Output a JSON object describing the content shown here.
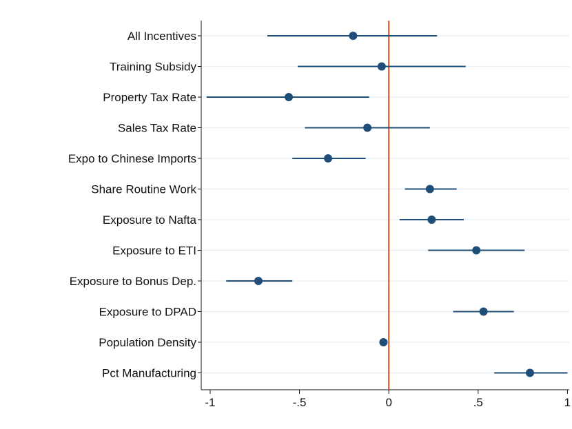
{
  "chart_data": {
    "type": "scatter",
    "orientation": "horizontal-coefficient-plot",
    "title": "",
    "xlabel": "",
    "ylabel": "",
    "xlim": [
      -1.05,
      1.01
    ],
    "xticks": [
      -1,
      -0.5,
      0,
      0.5,
      1
    ],
    "xtick_labels": [
      "-1",
      "-.5",
      "0",
      ".5",
      "1"
    ],
    "reference_line": {
      "x": 0,
      "color": "#e0531f"
    },
    "grid": "horizontal",
    "marker_color": "#1f4e79",
    "categories": [
      "All Incentives",
      "Training Subsidy",
      "Property Tax Rate",
      "Sales Tax Rate",
      "Expo to Chinese Imports",
      "Share Routine Work",
      "Exposure to Nafta",
      "Exposure to ETI",
      "Exposure to Bonus Dep.",
      "Exposure to DPAD",
      "Population Density",
      "Pct Manufacturing"
    ],
    "estimates": [
      -0.2,
      -0.04,
      -0.56,
      -0.12,
      -0.34,
      0.23,
      0.24,
      0.49,
      -0.73,
      0.53,
      -0.03,
      0.79
    ],
    "ci_low": [
      -0.68,
      -0.51,
      -1.02,
      -0.47,
      -0.54,
      0.09,
      0.06,
      0.22,
      -0.91,
      0.36,
      -0.03,
      0.59
    ],
    "ci_high": [
      0.27,
      0.43,
      -0.11,
      0.23,
      -0.13,
      0.38,
      0.42,
      0.76,
      -0.54,
      0.7,
      -0.03,
      1.0
    ]
  }
}
